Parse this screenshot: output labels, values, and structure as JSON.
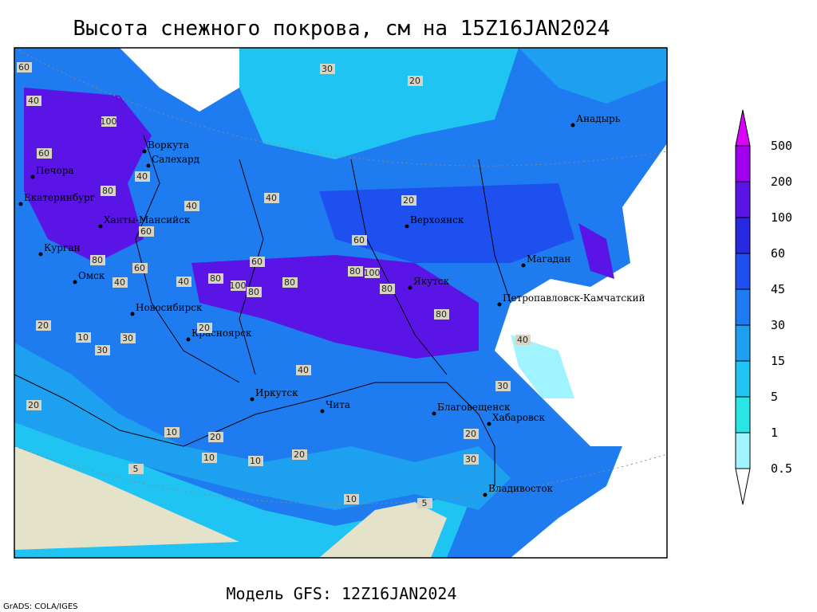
{
  "map": {
    "title": "Высота снежного покрова, см на 15Z16JAN2024",
    "footer": "Модель GFS: 12Z16JAN2024",
    "credit": "GrADS: COLA/IGES",
    "legend": {
      "levels": [
        0.5,
        1,
        5,
        15,
        30,
        45,
        60,
        100,
        200,
        500
      ],
      "colors": [
        "#ffffff",
        "#a0f4ff",
        "#28e6e6",
        "#20c4f2",
        "#1ea0f0",
        "#1e7cf0",
        "#1e50f0",
        "#2828e0",
        "#5a14e6",
        "#a000f0",
        "#dc00ff"
      ]
    },
    "cities": [
      "Воркута",
      "Салехард",
      "Печора",
      "Екатеринбург",
      "Ханты-Мансийск",
      "Курган",
      "Омск",
      "Новосибирск",
      "Красноярск",
      "Иркутск",
      "Чита",
      "Благовещенск",
      "Хабаровск",
      "Владивосток",
      "Верхоянск",
      "Якутск",
      "Магадан",
      "Петропавловск-Камчатский",
      "Анадырь"
    ],
    "contour_labels": [
      60,
      40,
      100,
      60,
      40,
      80,
      40,
      60,
      80,
      40,
      40,
      60,
      80,
      100,
      80,
      60,
      80,
      100,
      80,
      80,
      40,
      60,
      80,
      30,
      20,
      30,
      20,
      10,
      20,
      10,
      20,
      10,
      5,
      10,
      20,
      30,
      40,
      20,
      10,
      5,
      30,
      20,
      30,
      20,
      40
    ]
  }
}
